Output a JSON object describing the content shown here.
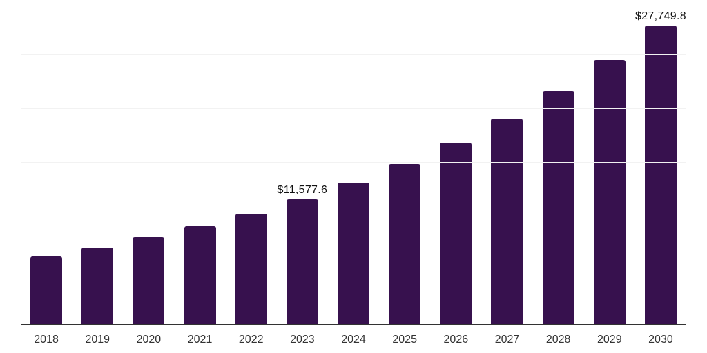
{
  "chart_data": {
    "type": "bar",
    "title": "",
    "xlabel": "",
    "ylabel": "",
    "categories": [
      "2018",
      "2019",
      "2020",
      "2021",
      "2022",
      "2023",
      "2024",
      "2025",
      "2026",
      "2027",
      "2028",
      "2029",
      "2030"
    ],
    "values": [
      6300,
      7100,
      8100,
      9100,
      10250,
      11577.6,
      13150,
      14900,
      16850,
      19100,
      21650,
      24550,
      27749.8
    ],
    "data_labels": [
      "",
      "",
      "",
      "",
      "",
      "$11,577.6",
      "",
      "",
      "",
      "",
      "",
      "",
      "$27,749.8"
    ],
    "ylim": [
      0,
      30000
    ],
    "gridline_step": 5000,
    "grid": "horizontal-only",
    "y_axis_labels_visible": false,
    "legend": "none",
    "bar_color": "#37114E",
    "axis_line_color": "#333333",
    "gridline_color": "#f2f2f2",
    "tick_label_color": "#333333",
    "data_label_color": "#111111"
  }
}
